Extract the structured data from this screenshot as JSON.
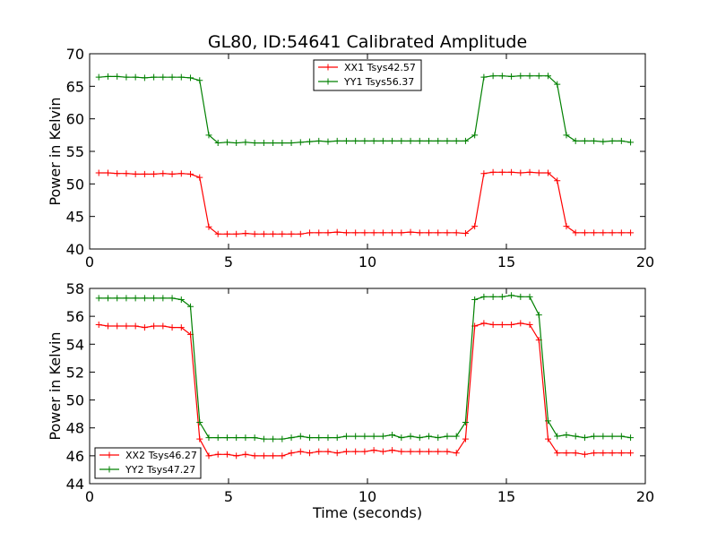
{
  "figure": {
    "title": "GL80, ID:54641 Calibrated Amplitude"
  },
  "chart_data": [
    {
      "type": "line",
      "title": "GL80, ID:54641 Calibrated Amplitude",
      "xlabel": "",
      "ylabel": "Power in Kelvin",
      "xlim": [
        0,
        20
      ],
      "ylim": [
        40,
        70
      ],
      "xticks": [
        0,
        5,
        10,
        15,
        20
      ],
      "yticks": [
        40,
        45,
        50,
        55,
        60,
        65,
        70
      ],
      "grid": false,
      "legend_position": "top-center",
      "x": [
        0.33,
        0.66,
        0.99,
        1.32,
        1.65,
        1.98,
        2.31,
        2.64,
        2.97,
        3.3,
        3.63,
        3.96,
        4.29,
        4.62,
        4.95,
        5.28,
        5.61,
        5.94,
        6.27,
        6.6,
        6.93,
        7.26,
        7.59,
        7.92,
        8.25,
        8.58,
        8.91,
        9.24,
        9.57,
        9.9,
        10.23,
        10.56,
        10.89,
        11.22,
        11.55,
        11.88,
        12.21,
        12.54,
        12.87,
        13.2,
        13.53,
        13.86,
        14.19,
        14.52,
        14.85,
        15.18,
        15.51,
        15.84,
        16.17,
        16.5,
        16.83,
        17.16,
        17.49,
        17.82,
        18.15,
        18.48,
        18.81,
        19.14,
        19.47
      ],
      "series": [
        {
          "name": "XX1 Tsys42.57",
          "color": "#ff0000",
          "values": [
            51.7,
            51.7,
            51.6,
            51.6,
            51.5,
            51.5,
            51.5,
            51.6,
            51.5,
            51.6,
            51.5,
            51.0,
            43.4,
            42.3,
            42.3,
            42.3,
            42.4,
            42.3,
            42.3,
            42.3,
            42.3,
            42.3,
            42.3,
            42.5,
            42.5,
            42.5,
            42.6,
            42.5,
            42.5,
            42.5,
            42.5,
            42.5,
            42.5,
            42.5,
            42.6,
            42.5,
            42.5,
            42.5,
            42.5,
            42.5,
            42.4,
            43.5,
            51.6,
            51.8,
            51.8,
            51.8,
            51.7,
            51.8,
            51.7,
            51.7,
            50.5,
            43.5,
            42.5,
            42.5,
            42.5,
            42.5,
            42.5,
            42.5,
            42.5
          ]
        },
        {
          "name": "YY1 Tsys56.37",
          "color": "#008000",
          "values": [
            66.4,
            66.5,
            66.5,
            66.4,
            66.4,
            66.3,
            66.4,
            66.4,
            66.4,
            66.4,
            66.3,
            65.9,
            57.5,
            56.3,
            56.4,
            56.3,
            56.4,
            56.3,
            56.3,
            56.3,
            56.3,
            56.3,
            56.4,
            56.5,
            56.6,
            56.5,
            56.6,
            56.6,
            56.6,
            56.6,
            56.6,
            56.6,
            56.6,
            56.6,
            56.6,
            56.6,
            56.6,
            56.6,
            56.6,
            56.6,
            56.6,
            57.5,
            66.4,
            66.6,
            66.6,
            66.5,
            66.6,
            66.6,
            66.6,
            66.6,
            65.3,
            57.5,
            56.6,
            56.6,
            56.6,
            56.5,
            56.6,
            56.6,
            56.4
          ]
        }
      ]
    },
    {
      "type": "line",
      "title": "",
      "xlabel": "Time (seconds)",
      "ylabel": "Power in Kelvin",
      "xlim": [
        0,
        20
      ],
      "ylim": [
        44,
        58
      ],
      "xticks": [
        0,
        5,
        10,
        15,
        20
      ],
      "yticks": [
        44,
        46,
        48,
        50,
        52,
        54,
        56,
        58
      ],
      "grid": false,
      "legend_position": "bottom-left",
      "x": [
        0.33,
        0.66,
        0.99,
        1.32,
        1.65,
        1.98,
        2.31,
        2.64,
        2.97,
        3.3,
        3.63,
        3.96,
        4.29,
        4.62,
        4.95,
        5.28,
        5.61,
        5.94,
        6.27,
        6.6,
        6.93,
        7.26,
        7.59,
        7.92,
        8.25,
        8.58,
        8.91,
        9.24,
        9.57,
        9.9,
        10.23,
        10.56,
        10.89,
        11.22,
        11.55,
        11.88,
        12.21,
        12.54,
        12.87,
        13.2,
        13.53,
        13.86,
        14.19,
        14.52,
        14.85,
        15.18,
        15.51,
        15.84,
        16.17,
        16.5,
        16.83,
        17.16,
        17.49,
        17.82,
        18.15,
        18.48,
        18.81,
        19.14,
        19.47
      ],
      "series": [
        {
          "name": "XX2 Tsys46.27",
          "color": "#ff0000",
          "values": [
            55.4,
            55.3,
            55.3,
            55.3,
            55.3,
            55.2,
            55.3,
            55.3,
            55.2,
            55.2,
            54.7,
            47.2,
            46.0,
            46.1,
            46.1,
            46.0,
            46.1,
            46.0,
            46.0,
            46.0,
            46.0,
            46.2,
            46.3,
            46.2,
            46.3,
            46.3,
            46.2,
            46.3,
            46.3,
            46.3,
            46.4,
            46.3,
            46.4,
            46.3,
            46.3,
            46.3,
            46.3,
            46.3,
            46.3,
            46.2,
            47.2,
            55.3,
            55.5,
            55.4,
            55.4,
            55.4,
            55.5,
            55.4,
            54.3,
            47.2,
            46.2,
            46.2,
            46.2,
            46.1,
            46.2,
            46.2,
            46.2,
            46.2,
            46.2
          ]
        },
        {
          "name": "YY2 Tsys47.27",
          "color": "#008000",
          "values": [
            57.3,
            57.3,
            57.3,
            57.3,
            57.3,
            57.3,
            57.3,
            57.3,
            57.3,
            57.2,
            56.7,
            48.4,
            47.3,
            47.3,
            47.3,
            47.3,
            47.3,
            47.3,
            47.2,
            47.2,
            47.2,
            47.3,
            47.4,
            47.3,
            47.3,
            47.3,
            47.3,
            47.4,
            47.4,
            47.4,
            47.4,
            47.4,
            47.5,
            47.3,
            47.4,
            47.3,
            47.4,
            47.3,
            47.4,
            47.4,
            48.4,
            57.2,
            57.4,
            57.4,
            57.4,
            57.5,
            57.4,
            57.4,
            56.1,
            48.5,
            47.4,
            47.5,
            47.4,
            47.3,
            47.4,
            47.4,
            47.4,
            47.4,
            47.3
          ]
        }
      ]
    }
  ]
}
